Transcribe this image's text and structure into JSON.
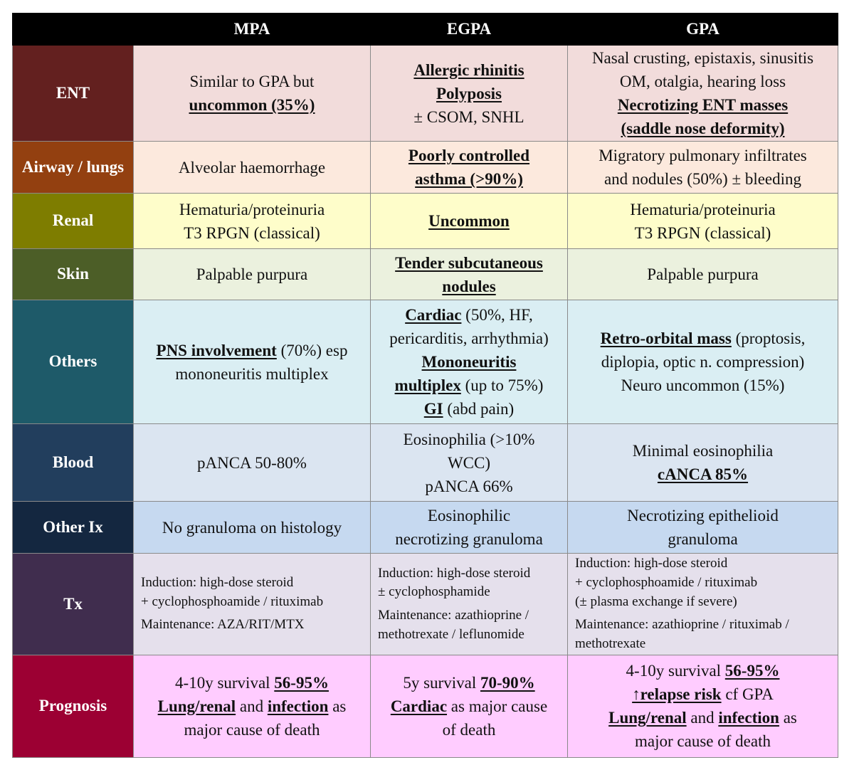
{
  "header": {
    "corner": "",
    "col1": "MPA",
    "col2": "EGPA",
    "col3": "GPA"
  },
  "colors": {
    "ent": "#63201f",
    "airway": "#934010",
    "renal": "#7e7d00",
    "skin": "#4c5e27",
    "others": "#1e5a69",
    "blood": "#223e5d",
    "otherix": "#142740",
    "tx": "#402d4e",
    "prognosis": "#9c0033",
    "ent_bg": "#f2dcdb",
    "airway_bg": "#fce9dd",
    "renal_bg": "#fefdca",
    "skin_bg": "#ebf1de",
    "others_bg": "#daeef3",
    "blood_bg": "#dbe5f1",
    "otherix_bg": "#c6d9f0",
    "tx_bg": "#e5e0ec",
    "prognosis_bg": "#ffccff"
  },
  "rows": {
    "ent": {
      "label": "ENT",
      "mpa": {
        "a": "Similar to GPA but",
        "b": "uncommon (35%)"
      },
      "egpa": {
        "a": "Allergic rhinitis",
        "b": "Polyposis",
        "c": "± CSOM, SNHL"
      },
      "gpa": {
        "a": "Nasal crusting, epistaxis, sinusitis",
        "b": "OM, otalgia, hearing loss",
        "c": "Necrotizing ENT masses",
        "d": "(saddle nose deformity)"
      }
    },
    "airway": {
      "label_a": "Airway /",
      "label_b": "lungs",
      "mpa": {
        "a": "Alveolar haemorrhage"
      },
      "egpa": {
        "a": "Poorly controlled",
        "b": "asthma (>90%)"
      },
      "gpa": {
        "a": "Migratory pulmonary infiltrates",
        "b": "and nodules (50%) ± bleeding"
      }
    },
    "renal": {
      "label": "Renal",
      "mpa": {
        "a": "Hematuria/proteinuria",
        "b": "T3 RPGN (classical)"
      },
      "egpa": {
        "a": "Uncommon"
      },
      "gpa": {
        "a": "Hematuria/proteinuria",
        "b": "T3 RPGN (classical)"
      }
    },
    "skin": {
      "label": "Skin",
      "mpa": {
        "a": "Palpable purpura"
      },
      "egpa": {
        "a": "Tender subcutaneous",
        "b": "nodules"
      },
      "gpa": {
        "a": "Palpable purpura"
      }
    },
    "others": {
      "label": "Others",
      "mpa": {
        "a_em": "PNS involvement",
        "a_rest": " (70%) esp",
        "b": "mononeuritis multiplex"
      },
      "egpa": {
        "a_em": "Cardiac",
        "a_rest": " (50%, HF,",
        "b": "pericarditis, arrhythmia)",
        "c": "Mononeuritis",
        "d_em": "multiplex",
        "d_rest": " (up to 75%)",
        "e_em": "GI",
        "e_rest": " (abd pain)"
      },
      "gpa": {
        "a_em": "Retro-orbital mass",
        "a_rest": " (proptosis,",
        "b": "diplopia, optic n. compression)",
        "c": "Neuro uncommon (15%)"
      }
    },
    "blood": {
      "label": "Blood",
      "mpa": {
        "a": "pANCA 50-80%"
      },
      "egpa": {
        "a": "Eosinophilia (>10%",
        "b": "WCC)",
        "c": "pANCA 66%"
      },
      "gpa": {
        "a": "Minimal eosinophilia",
        "b": "cANCA 85%"
      }
    },
    "otherix": {
      "label": "Other Ix",
      "mpa": {
        "a": "No granuloma on histology"
      },
      "egpa": {
        "a": "Eosinophilic",
        "b": "necrotizing granuloma"
      },
      "gpa": {
        "a": "Necrotizing epithelioid",
        "b": "granuloma"
      }
    },
    "tx": {
      "label": "Tx",
      "mpa": {
        "a": "Induction: high-dose steroid",
        "b": "+ cyclophosphoamide / rituximab",
        "c": "Maintenance: AZA/RIT/MTX"
      },
      "egpa": {
        "a": "Induction: high-dose steroid",
        "b": "± cyclophosphamide",
        "c": "Maintenance: azathioprine /",
        "d": "methotrexate / leflunomide"
      },
      "gpa": {
        "a": "Induction: high-dose steroid",
        "b": "+ cyclophosphoamide / rituximab",
        "c": "(± plasma exchange if severe)",
        "d": "Maintenance: azathioprine / rituximab /",
        "e": "methotrexate"
      }
    },
    "prognosis": {
      "label": "Prognosis",
      "mpa": {
        "a_pre": "4-10y survival ",
        "a_em": "56-95%",
        "b_em1": "Lung/renal",
        "b_mid": " and ",
        "b_em2": "infection",
        "b_rest": " as",
        "c": "major cause of death"
      },
      "egpa": {
        "a_pre": "5y survival ",
        "a_em": "70-90%",
        "b_em": "Cardiac",
        "b_rest": " as major cause",
        "c": "of death"
      },
      "gpa": {
        "a_pre": "4-10y survival ",
        "a_em": "56-95%",
        "b_em": "↑relapse risk",
        "b_rest": " cf GPA",
        "c_em1": "Lung/renal",
        "c_mid": " and ",
        "c_em2": "infection",
        "c_rest": " as",
        "d": "major cause of death"
      }
    }
  }
}
